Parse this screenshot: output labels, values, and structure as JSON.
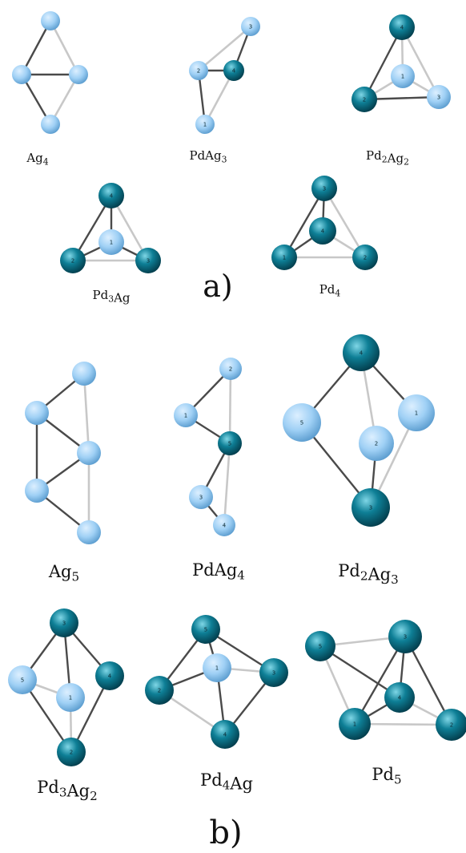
{
  "panels": [
    {
      "label": "a)"
    },
    {
      "label": "b)"
    }
  ],
  "colors": {
    "ag_light": "#dcefff",
    "ag_mid": "#9fd0f5",
    "ag_dark": "#5d9ed0",
    "pd_light": "#7fd6e6",
    "pd_mid": "#0e7f96",
    "pd_dark": "#033e4d",
    "bond_dark": "#4a4a4a",
    "bond_light": "#c8c8c8"
  },
  "clusters": [
    {
      "id": "Ag4",
      "formula": "Ag",
      "sub": "4",
      "atoms": [
        {
          "el": "Ag",
          "num": ""
        },
        {
          "el": "Ag",
          "num": ""
        },
        {
          "el": "Ag",
          "num": ""
        },
        {
          "el": "Ag",
          "num": ""
        }
      ]
    },
    {
      "id": "PdAg3",
      "formula": "PdAg",
      "sub": "3",
      "atoms": [
        {
          "el": "Ag",
          "num": "3"
        },
        {
          "el": "Ag",
          "num": "2"
        },
        {
          "el": "Pd",
          "num": "4"
        },
        {
          "el": "Ag",
          "num": "1"
        }
      ]
    },
    {
      "id": "Pd2Ag2",
      "formula": "Pd",
      "sub": "2",
      "formula2": "Ag",
      "sub2": "2",
      "atoms": [
        {
          "el": "Pd",
          "num": "4"
        },
        {
          "el": "Ag",
          "num": "1"
        },
        {
          "el": "Pd",
          "num": "2"
        },
        {
          "el": "Ag",
          "num": "3"
        }
      ]
    },
    {
      "id": "Pd3Ag",
      "formula": "Pd",
      "sub": "3",
      "formula2": "Ag",
      "sub2": "",
      "atoms": [
        {
          "el": "Pd",
          "num": "4"
        },
        {
          "el": "Ag",
          "num": "1"
        },
        {
          "el": "Pd",
          "num": "2"
        },
        {
          "el": "Pd",
          "num": "3"
        }
      ]
    },
    {
      "id": "Pd4",
      "formula": "Pd",
      "sub": "4",
      "atoms": [
        {
          "el": "Pd",
          "num": "3"
        },
        {
          "el": "Pd",
          "num": "4"
        },
        {
          "el": "Pd",
          "num": "1"
        },
        {
          "el": "Pd",
          "num": "2"
        }
      ]
    },
    {
      "id": "Ag5",
      "formula": "Ag",
      "sub": "5",
      "atoms": [
        {
          "el": "Ag",
          "num": ""
        },
        {
          "el": "Ag",
          "num": ""
        },
        {
          "el": "Ag",
          "num": ""
        },
        {
          "el": "Ag",
          "num": ""
        },
        {
          "el": "Ag",
          "num": ""
        }
      ]
    },
    {
      "id": "PdAg4",
      "formula": "PdAg",
      "sub": "4",
      "atoms": [
        {
          "el": "Ag",
          "num": "2"
        },
        {
          "el": "Ag",
          "num": "1"
        },
        {
          "el": "Pd",
          "num": "5"
        },
        {
          "el": "Ag",
          "num": "3"
        },
        {
          "el": "Ag",
          "num": "4"
        }
      ]
    },
    {
      "id": "Pd2Ag3",
      "formula": "Pd",
      "sub": "2",
      "formula2": "Ag",
      "sub2": "3",
      "atoms": [
        {
          "el": "Pd",
          "num": "4"
        },
        {
          "el": "Ag",
          "num": "5"
        },
        {
          "el": "Ag",
          "num": "1"
        },
        {
          "el": "Ag",
          "num": "2"
        },
        {
          "el": "Pd",
          "num": "3"
        }
      ]
    },
    {
      "id": "Pd3Ag2",
      "formula": "Pd",
      "sub": "3",
      "formula2": "Ag",
      "sub2": "2",
      "atoms": [
        {
          "el": "Pd",
          "num": "3"
        },
        {
          "el": "Ag",
          "num": "5"
        },
        {
          "el": "Pd",
          "num": "4"
        },
        {
          "el": "Ag",
          "num": "1"
        },
        {
          "el": "Pd",
          "num": "2"
        }
      ]
    },
    {
      "id": "Pd4Ag",
      "formula": "Pd",
      "sub": "4",
      "formula2": "Ag",
      "sub2": "",
      "atoms": [
        {
          "el": "Pd",
          "num": "5"
        },
        {
          "el": "Ag",
          "num": "1"
        },
        {
          "el": "Pd",
          "num": "2"
        },
        {
          "el": "Pd",
          "num": "3"
        },
        {
          "el": "Pd",
          "num": "4"
        }
      ]
    },
    {
      "id": "Pd5",
      "formula": "Pd",
      "sub": "5",
      "atoms": [
        {
          "el": "Pd",
          "num": "5"
        },
        {
          "el": "Pd",
          "num": "3"
        },
        {
          "el": "Pd",
          "num": "4"
        },
        {
          "el": "Pd",
          "num": "1"
        },
        {
          "el": "Pd",
          "num": "2"
        }
      ]
    }
  ]
}
